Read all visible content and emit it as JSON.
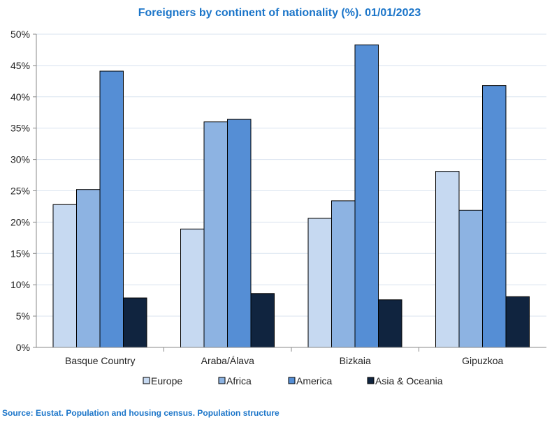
{
  "chart_data": {
    "type": "bar",
    "title": "Foreigners by continent of nationality (%).  01/01/2023",
    "categories": [
      "Basque Country",
      "Araba/Álava",
      "Bizkaia",
      "Gipuzkoa"
    ],
    "series": [
      {
        "name": "Europe",
        "color": "#c6d9f1",
        "values": [
          22.8,
          18.9,
          20.6,
          28.1
        ]
      },
      {
        "name": "Africa",
        "color": "#8db3e2",
        "values": [
          25.2,
          36.0,
          23.4,
          21.9
        ]
      },
      {
        "name": "America",
        "color": "#558ed5",
        "values": [
          44.1,
          36.4,
          48.3,
          41.8
        ]
      },
      {
        "name": "Asia & Oceania",
        "color": "#10243f",
        "values": [
          7.9,
          8.6,
          7.6,
          8.1
        ]
      }
    ],
    "yticks": [
      "0%",
      "5%",
      "10%",
      "15%",
      "20%",
      "25%",
      "30%",
      "35%",
      "40%",
      "45%",
      "50%"
    ],
    "ylim": [
      0,
      50
    ],
    "xlabel": "",
    "ylabel": "",
    "grid": true,
    "legend": "bottom"
  },
  "source": "Source: Eustat. Population and housing census. Population structure"
}
